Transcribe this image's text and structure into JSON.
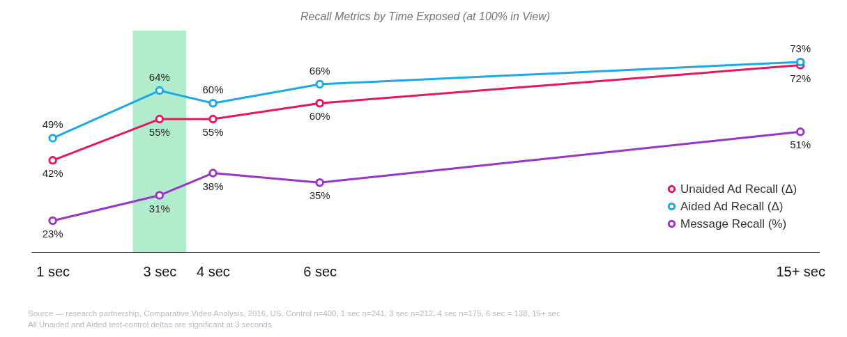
{
  "chart_data": {
    "type": "line",
    "title": "Recall Metrics by Time Exposed (at 100% in View)",
    "x": [
      1,
      3,
      4,
      6,
      15
    ],
    "xlim": [
      0.6,
      15.35
    ],
    "xticks": [
      {
        "value": 1,
        "label": "1 sec"
      },
      {
        "value": 3,
        "label": "3 sec"
      },
      {
        "value": 4,
        "label": "4 sec"
      },
      {
        "value": 6,
        "label": "6 sec"
      },
      {
        "value": 15,
        "label": "15+ sec"
      }
    ],
    "tick_labels": "x",
    "grid": false,
    "marker": "circle",
    "legend": "bottom right",
    "series": [
      {
        "name": "Unaided Ad Recall (Δ)",
        "color": "#e8175d",
        "values": [
          42,
          55,
          55,
          60,
          72
        ],
        "value_labels": [
          "42%",
          "55%",
          "55%",
          "60%",
          "72%"
        ]
      },
      {
        "name": "Aided Ad Recall (Δ)",
        "color": "#1ba9e8",
        "values": [
          49,
          64,
          60,
          66,
          73
        ],
        "value_labels": [
          "49%",
          "64%",
          "60%",
          "66%",
          "73%"
        ]
      },
      {
        "name": "Message Recall (%)",
        "color": "#9b35c9",
        "values": [
          23,
          31,
          38,
          35,
          51
        ],
        "value_labels": [
          "23%",
          "31%",
          "38%",
          "35%",
          "51%"
        ]
      }
    ],
    "bands": [
      {
        "axis": "x",
        "from": 2.5,
        "to": 3.5,
        "color": "#a9ebc6"
      }
    ],
    "annotations": [
      "Source — research partnership, Comparative Video Analysis, 2016, US. Control n=400, 1 sec n=241, 3 sec n=212, 4 sec n=175, 6 sec = 138, 15+ sec",
      "All Unaided and Aided test-control deltas are significant at 3 seconds"
    ]
  }
}
